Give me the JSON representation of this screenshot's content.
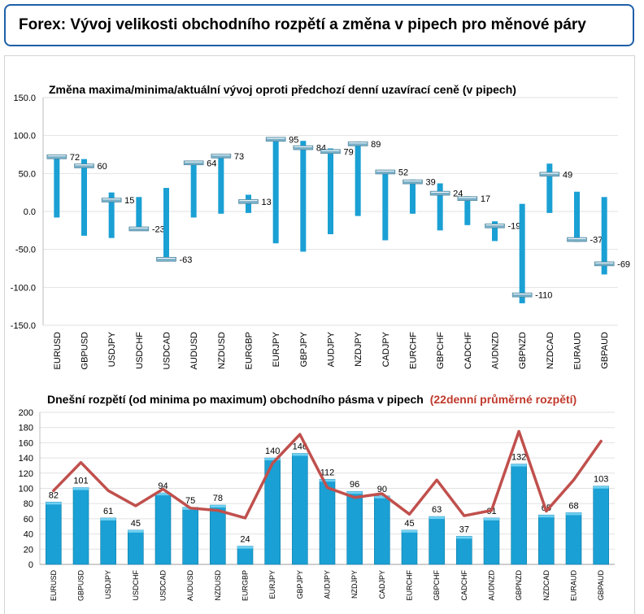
{
  "header": {
    "title": "Forex: Vývoj velikosti obchodního rozpětí a změna v pipech pro měnové páry"
  },
  "colors": {
    "accent": "#1f5fa8",
    "bar": "#1aa0d4",
    "avg_line": "#c0504d",
    "marker": "#7ab0c8"
  },
  "chart_data": [
    {
      "type": "bar",
      "title": "Změna maxima/minima/aktuální vývoj oproti předchozí denní uzavírací ceně (v pipech)",
      "categories": [
        "EURUSD",
        "GBPUSD",
        "USDJPY",
        "USDCHF",
        "USDCAD",
        "AUDUSD",
        "NZDUSD",
        "EURGBP",
        "EURJPY",
        "GBPJPY",
        "AUDJPY",
        "NZDJPY",
        "CADJPY",
        "EURCHF",
        "GBPCHF",
        "CADCHF",
        "AUDNZD",
        "GBPNZD",
        "NZDCAD",
        "EURAUD",
        "GBPAUD"
      ],
      "series": [
        {
          "values": [
            72,
            60,
            15,
            -23,
            -63,
            64,
            73,
            13,
            95,
            84,
            79,
            89,
            52,
            39,
            24,
            17,
            -19,
            -110,
            49,
            -37,
            -69
          ]
        }
      ],
      "ranges": {
        "low": [
          -8,
          -32,
          -35,
          -25,
          -63,
          -8,
          -3,
          -2,
          -42,
          -53,
          -30,
          -6,
          -38,
          -3,
          -25,
          -18,
          -39,
          -121,
          -2,
          -40,
          -83
        ],
        "high": [
          73,
          69,
          25,
          19,
          31,
          65,
          76,
          22,
          98,
          93,
          83,
          92,
          53,
          42,
          37,
          20,
          -13,
          10,
          63,
          26,
          19
        ]
      },
      "ylim": [
        -150,
        150
      ],
      "yticks": [
        "150.0",
        "100.0",
        "50.0",
        "0.0",
        "-50.0",
        "-100.0",
        "-150.0"
      ],
      "grid": true
    },
    {
      "type": "bar",
      "title": "Dnešní rozpětí (od minima po maximum) obchodního pásma v pipech",
      "title_highlight": "(22denní průměrné rozpětí)",
      "categories": [
        "EURUSD",
        "GBPUSD",
        "USDJPY",
        "USDCHF",
        "USDCAD",
        "AUDUSD",
        "NZDUSD",
        "EURGBP",
        "EURJPY",
        "GBPJPY",
        "AUDJPY",
        "NZDJPY",
        "CADJPY",
        "EURCHF",
        "GBPCHF",
        "CADCHF",
        "AUDNZD",
        "GBPNZD",
        "NZDCAD",
        "EURAUD",
        "GBPAUD"
      ],
      "series": [
        {
          "values": [
            82,
            101,
            61,
            45,
            94,
            75,
            78,
            24,
            140,
            146,
            112,
            96,
            90,
            45,
            63,
            37,
            61,
            132,
            65,
            68,
            103
          ]
        },
        {
          "values": [
            97,
            134,
            97,
            77,
            99,
            74,
            71,
            61,
            133,
            171,
            101,
            88,
            93,
            66,
            111,
            64,
            71,
            175,
            70,
            111,
            162
          ]
        }
      ],
      "ylim": [
        0,
        200
      ],
      "yticks": [
        "200",
        "180",
        "160",
        "140",
        "120",
        "100",
        "80",
        "60",
        "40",
        "20",
        "0"
      ],
      "grid": true
    }
  ]
}
